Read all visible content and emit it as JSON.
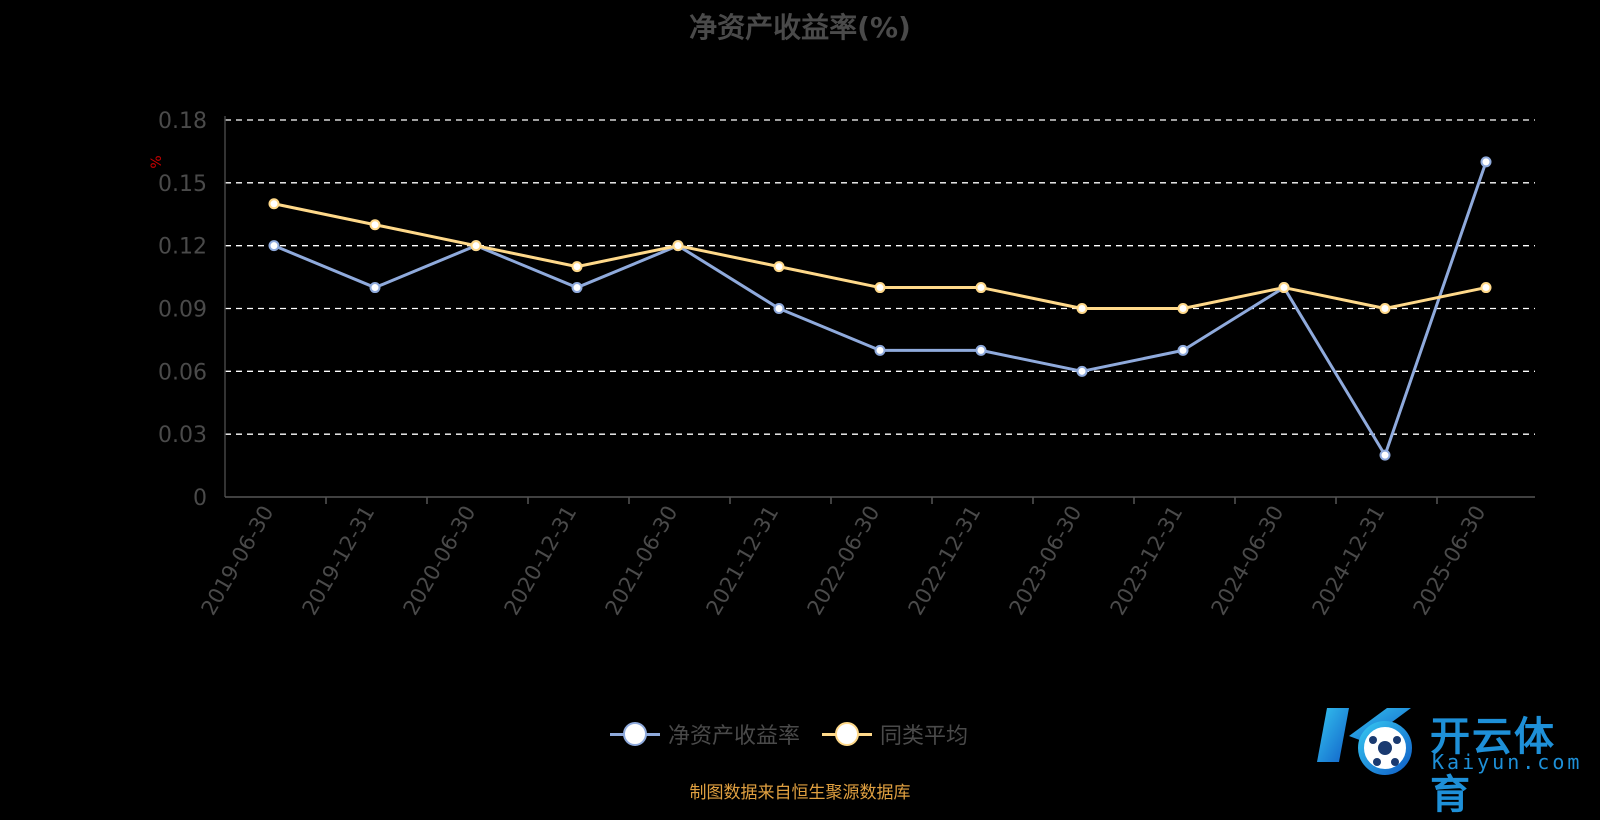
{
  "chart_data": {
    "type": "line",
    "title": "净资产收益率(%)",
    "ylabel": "%",
    "ylim": [
      0,
      0.18
    ],
    "yticks": [
      "0",
      "0.03",
      "0.06",
      "0.09",
      "0.12",
      "0.15",
      "0.18"
    ],
    "grid": true,
    "legend_position": "bottom",
    "categories": [
      "2019-06-30",
      "2019-12-31",
      "2020-06-30",
      "2020-12-31",
      "2021-06-30",
      "2021-12-31",
      "2022-06-30",
      "2022-12-31",
      "2023-06-30",
      "2023-12-31",
      "2024-06-30",
      "2024-12-31",
      "2025-06-30"
    ],
    "series": [
      {
        "name": "净资产收益率",
        "color": "#8faadc",
        "values": [
          0.12,
          0.1,
          0.12,
          0.1,
          0.12,
          0.09,
          0.07,
          0.07,
          0.06,
          0.07,
          0.1,
          0.02,
          0.16
        ]
      },
      {
        "name": "同类平均",
        "color": "#ffd98a",
        "values": [
          0.14,
          0.13,
          0.12,
          0.11,
          0.12,
          0.11,
          0.1,
          0.1,
          0.09,
          0.09,
          0.1,
          0.09,
          0.1
        ]
      }
    ]
  },
  "source_note": "制图数据来自恒生聚源数据库",
  "watermark": {
    "text": "开云体育",
    "sub": "Kaiyun.com",
    "mark": "K"
  }
}
